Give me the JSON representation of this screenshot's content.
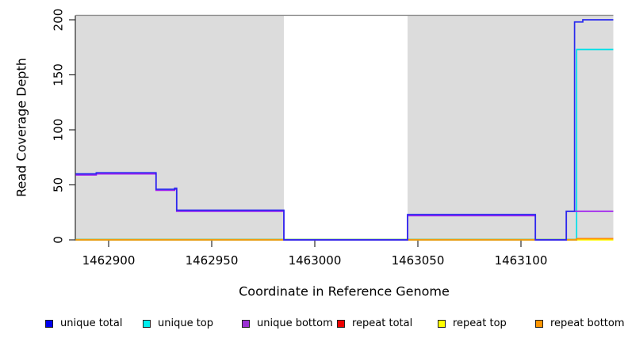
{
  "chart_data": {
    "type": "line",
    "subtype": "step-coverage",
    "title": "",
    "xlabel": "Coordinate in Reference Genome",
    "ylabel": "Read Coverage Depth",
    "xlim": [
      1462884,
      1463145
    ],
    "ylim": [
      0,
      204
    ],
    "x_ticks": [
      1462900,
      1462950,
      1463000,
      1463050,
      1463100
    ],
    "y_ticks": [
      0,
      50,
      100,
      150,
      200
    ],
    "grid": false,
    "legend_position": "bottom",
    "shaded_regions": [
      {
        "start": 1462884,
        "end": 1462985,
        "color": "#dcdcdc"
      },
      {
        "start": 1463045,
        "end": 1463145,
        "color": "#dcdcdc"
      }
    ],
    "gap_region": {
      "start": 1462985,
      "end": 1463045
    },
    "frame_top_line_color": "#8f8f8f",
    "zero_baseline_color": "#7cc87c",
    "zero_baseline_note": "overlapping unique-top/repeat lines at depth 0 render as a green line",
    "zero_baseline_range": [
      1462884,
      1463127
    ],
    "series": [
      {
        "name": "unique total",
        "color": "#2a2aee",
        "segments": [
          [
            1462884,
            1462894,
            60
          ],
          [
            1462894,
            1462923,
            61
          ],
          [
            1462923,
            1462932,
            46
          ],
          [
            1462932,
            1462933,
            47
          ],
          [
            1462933,
            1462985,
            27
          ],
          [
            1462985,
            1463045,
            0
          ],
          [
            1463045,
            1463107,
            23
          ],
          [
            1463107,
            1463122,
            0
          ],
          [
            1463122,
            1463126,
            26
          ],
          [
            1463126,
            1463130,
            198
          ],
          [
            1463130,
            1463145,
            200
          ]
        ]
      },
      {
        "name": "unique top",
        "color": "#00e0e8",
        "segments": [
          [
            1462884,
            1463127,
            0
          ],
          [
            1463127,
            1463145,
            173
          ]
        ]
      },
      {
        "name": "unique bottom",
        "color": "#a020f0",
        "segments": [
          [
            1462884,
            1462894,
            59
          ],
          [
            1462894,
            1462923,
            60
          ],
          [
            1462923,
            1462932,
            45
          ],
          [
            1462932,
            1462933,
            46
          ],
          [
            1462933,
            1462985,
            26
          ],
          [
            1462985,
            1463045,
            0
          ],
          [
            1463045,
            1463107,
            22
          ],
          [
            1463107,
            1463122,
            0
          ],
          [
            1463122,
            1463145,
            26
          ]
        ]
      },
      {
        "name": "repeat total",
        "color": "#ee0000",
        "segments": [
          [
            1462884,
            1463127,
            0
          ],
          [
            1463127,
            1463145,
            1
          ]
        ]
      },
      {
        "name": "repeat top",
        "color": "#ffff00",
        "segments": [
          [
            1462884,
            1463145,
            0
          ]
        ]
      },
      {
        "name": "repeat bottom",
        "color": "#ff9500",
        "segments": [
          [
            1462884,
            1463127,
            0
          ],
          [
            1463127,
            1463145,
            1
          ]
        ]
      }
    ]
  },
  "legend": {
    "items": [
      {
        "label": "unique total",
        "color": "#0000ee"
      },
      {
        "label": "unique top",
        "color": "#00eeee"
      },
      {
        "label": "unique bottom",
        "color": "#9b30d5"
      },
      {
        "label": "repeat total",
        "color": "#ee0000"
      },
      {
        "label": "repeat top",
        "color": "#ffff00"
      },
      {
        "label": "repeat bottom",
        "color": "#ff9500"
      }
    ]
  }
}
